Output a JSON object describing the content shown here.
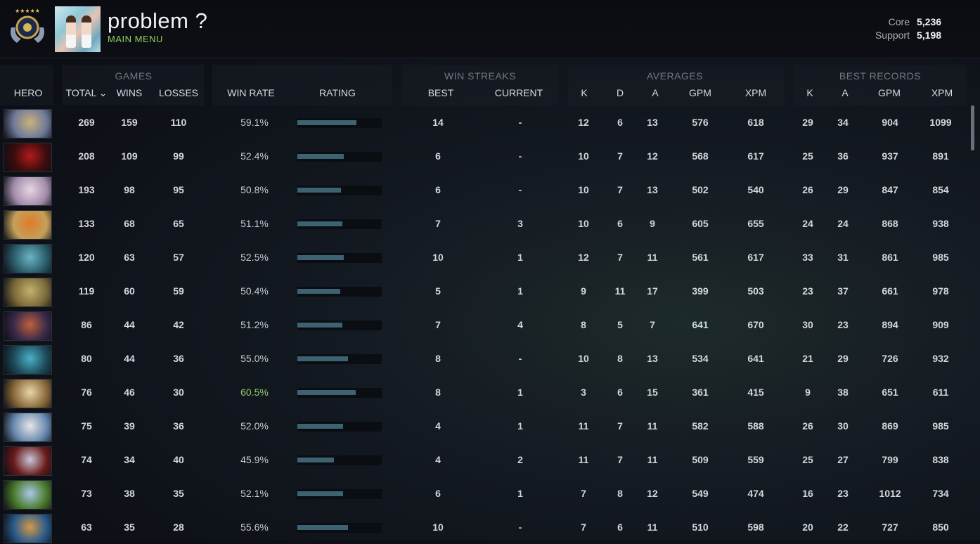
{
  "header": {
    "title": "problem ?",
    "subtitle": "MAIN MENU",
    "core_label": "Core",
    "core_value": "5,236",
    "support_label": "Support",
    "support_value": "5,198"
  },
  "groups": {
    "games": "GAMES",
    "win_streaks": "WIN STREAKS",
    "averages": "AVERAGES",
    "best_records": "BEST RECORDS"
  },
  "columns": {
    "hero": "HERO",
    "total": "TOTAL ⌄",
    "wins": "WINS",
    "losses": "LOSSES",
    "win_rate": "WIN RATE",
    "rating": "RATING",
    "best": "BEST",
    "current": "CURRENT",
    "k": "K",
    "d": "D",
    "a": "A",
    "gpm": "GPM",
    "xpm": "XPM",
    "best_k": "K",
    "best_a": "A",
    "best_gpm": "GPM",
    "best_xpm": "XPM"
  },
  "accent": "#8ecf72",
  "bar_color": "#3d6271",
  "rows": [
    {
      "hero_icon": "tinker-portrait",
      "total": "269",
      "wins": "159",
      "losses": "110",
      "win_rate": "59.1%",
      "rating": 0.7,
      "best": "14",
      "current": "-",
      "k": "12",
      "d": "6",
      "a": "13",
      "gpm": "576",
      "xpm": "618",
      "bk": "29",
      "ba": "34",
      "bgpm": "904",
      "bxpm": "1099"
    },
    {
      "hero_icon": "shadow-fiend-portrait",
      "total": "208",
      "wins": "109",
      "losses": "99",
      "win_rate": "52.4%",
      "rating": 0.55,
      "best": "6",
      "current": "-",
      "k": "10",
      "d": "7",
      "a": "12",
      "gpm": "568",
      "xpm": "617",
      "bk": "25",
      "ba": "36",
      "bgpm": "937",
      "bxpm": "891"
    },
    {
      "hero_icon": "invoker-portrait",
      "total": "193",
      "wins": "98",
      "losses": "95",
      "win_rate": "50.8%",
      "rating": 0.52,
      "best": "6",
      "current": "-",
      "k": "10",
      "d": "7",
      "a": "13",
      "gpm": "502",
      "xpm": "540",
      "bk": "26",
      "ba": "29",
      "bgpm": "847",
      "bxpm": "854"
    },
    {
      "hero_icon": "keeper-portrait",
      "total": "133",
      "wins": "68",
      "losses": "65",
      "win_rate": "51.1%",
      "rating": 0.53,
      "best": "7",
      "current": "3",
      "k": "10",
      "d": "6",
      "a": "9",
      "gpm": "605",
      "xpm": "655",
      "bk": "24",
      "ba": "24",
      "bgpm": "868",
      "bxpm": "938"
    },
    {
      "hero_icon": "phantom-assassin-portrait",
      "total": "120",
      "wins": "63",
      "losses": "57",
      "win_rate": "52.5%",
      "rating": 0.55,
      "best": "10",
      "current": "1",
      "k": "12",
      "d": "7",
      "a": "11",
      "gpm": "561",
      "xpm": "617",
      "bk": "33",
      "ba": "31",
      "bgpm": "861",
      "bxpm": "985"
    },
    {
      "hero_icon": "alchemist-portrait",
      "total": "119",
      "wins": "60",
      "losses": "59",
      "win_rate": "50.4%",
      "rating": 0.51,
      "best": "5",
      "current": "1",
      "k": "9",
      "d": "11",
      "a": "17",
      "gpm": "399",
      "xpm": "503",
      "bk": "23",
      "ba": "37",
      "bgpm": "661",
      "bxpm": "978"
    },
    {
      "hero_icon": "anti-mage-portrait",
      "total": "86",
      "wins": "44",
      "losses": "42",
      "win_rate": "51.2%",
      "rating": 0.53,
      "best": "7",
      "current": "4",
      "k": "8",
      "d": "5",
      "a": "7",
      "gpm": "641",
      "xpm": "670",
      "bk": "30",
      "ba": "23",
      "bgpm": "894",
      "bxpm": "909"
    },
    {
      "hero_icon": "morphling-portrait",
      "total": "80",
      "wins": "44",
      "losses": "36",
      "win_rate": "55.0%",
      "rating": 0.6,
      "best": "8",
      "current": "-",
      "k": "10",
      "d": "8",
      "a": "13",
      "gpm": "534",
      "xpm": "641",
      "bk": "21",
      "ba": "29",
      "bgpm": "726",
      "bxpm": "932"
    },
    {
      "hero_icon": "zeus-portrait",
      "total": "76",
      "wins": "46",
      "losses": "30",
      "win_rate": "60.5%",
      "rating": 0.69,
      "best": "8",
      "current": "1",
      "k": "3",
      "d": "6",
      "a": "15",
      "gpm": "361",
      "xpm": "415",
      "bk": "9",
      "ba": "38",
      "bgpm": "651",
      "bxpm": "611",
      "highlight": true
    },
    {
      "hero_icon": "tusk-portrait",
      "total": "75",
      "wins": "39",
      "losses": "36",
      "win_rate": "52.0%",
      "rating": 0.54,
      "best": "4",
      "current": "1",
      "k": "11",
      "d": "7",
      "a": "11",
      "gpm": "582",
      "xpm": "588",
      "bk": "26",
      "ba": "30",
      "bgpm": "869",
      "bxpm": "985"
    },
    {
      "hero_icon": "queen-of-pain-portrait",
      "total": "74",
      "wins": "34",
      "losses": "40",
      "win_rate": "45.9%",
      "rating": 0.43,
      "best": "4",
      "current": "2",
      "k": "11",
      "d": "7",
      "a": "11",
      "gpm": "509",
      "xpm": "559",
      "bk": "25",
      "ba": "27",
      "bgpm": "799",
      "bxpm": "838"
    },
    {
      "hero_icon": "windranger-portrait",
      "total": "73",
      "wins": "38",
      "losses": "35",
      "win_rate": "52.1%",
      "rating": 0.54,
      "best": "6",
      "current": "1",
      "k": "7",
      "d": "8",
      "a": "12",
      "gpm": "549",
      "xpm": "474",
      "bk": "16",
      "ba": "23",
      "bgpm": "1012",
      "bxpm": "734"
    },
    {
      "hero_icon": "brewmaster-portrait",
      "total": "63",
      "wins": "35",
      "losses": "28",
      "win_rate": "55.6%",
      "rating": 0.6,
      "best": "10",
      "current": "-",
      "k": "7",
      "d": "6",
      "a": "11",
      "gpm": "510",
      "xpm": "598",
      "bk": "20",
      "ba": "22",
      "bgpm": "727",
      "bxpm": "850"
    }
  ]
}
